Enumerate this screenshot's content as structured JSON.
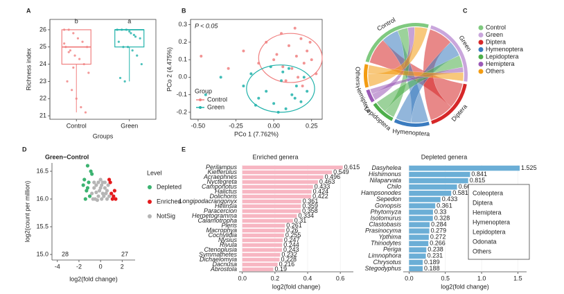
{
  "panel_labels": [
    "A",
    "B",
    "C",
    "D",
    "E"
  ],
  "chart_data": [
    {
      "type": "box",
      "ylabel": "Richness index",
      "xlabel": "Groups",
      "categories": [
        "Control",
        "Green"
      ],
      "colors": [
        "#f08080",
        "#20b2aa"
      ],
      "letters": [
        "b",
        "a"
      ],
      "boxes": [
        {
          "min": 21.2,
          "q1": 24,
          "median": 25,
          "q3": 26,
          "max": 26
        },
        {
          "min": 23,
          "q1": 25,
          "median": 26,
          "q3": 26,
          "max": 26
        }
      ],
      "points": [
        [
          26,
          26,
          25.8,
          25.5,
          25.3,
          25,
          25,
          24.8,
          24.5,
          24.3,
          24,
          23.5,
          23,
          22.5,
          22,
          21.5,
          21.2,
          25.2,
          24.7,
          23.8
        ],
        [
          26,
          26,
          26,
          25.8,
          25.6,
          25.5,
          25.3,
          25,
          25,
          24.8,
          24.5,
          24,
          23.2,
          23,
          25.9,
          25.7
        ]
      ],
      "ylim": [
        20.8,
        26.6
      ],
      "yticks": [
        21,
        22,
        23,
        24,
        25,
        26
      ]
    },
    {
      "type": "scatter",
      "xlabel": "PCo 1 (7.762%)",
      "ylabel": "PCo 2 (4.475%)",
      "annotation": "P < 0.05",
      "legend_title": "Group",
      "series": [
        {
          "name": "Control",
          "color": "#f08080",
          "x": [
            -0.48,
            -0.3,
            -0.2,
            -0.05,
            0.0,
            0.05,
            0.1,
            0.12,
            0.15,
            0.18,
            0.2,
            0.22,
            0.25,
            0.28,
            0.08,
            0.02,
            0.14,
            0.19,
            -0.1,
            0.24,
            0.06,
            0.16
          ],
          "y": [
            0.12,
            0.05,
            0.15,
            0.2,
            0.1,
            0.25,
            0.18,
            0.05,
            0.12,
            0.22,
            0.08,
            0.15,
            0.1,
            0.02,
            -0.02,
            0.13,
            0.28,
            -0.05,
            0.08,
            0.2,
            0.06,
            0.0
          ]
        },
        {
          "name": "Green",
          "color": "#20b2aa",
          "x": [
            -0.45,
            -0.35,
            -0.2,
            -0.15,
            -0.1,
            -0.05,
            0.0,
            0.05,
            0.08,
            0.1,
            0.12,
            0.15,
            0.18,
            0.2,
            -0.02,
            0.03,
            0.22,
            -0.12,
            0.06,
            0.14
          ],
          "y": [
            -0.1,
            0.0,
            -0.05,
            0.02,
            -0.12,
            -0.08,
            -0.15,
            -0.02,
            -0.18,
            0.05,
            -0.1,
            -0.05,
            -0.14,
            0.0,
            0.06,
            -0.2,
            -0.08,
            -0.16,
            0.03,
            -0.12
          ]
        }
      ],
      "ellipses": [
        {
          "cx": 0.11,
          "cy": 0.11,
          "rx": 0.21,
          "ry": 0.14
        },
        {
          "cx": 0.045,
          "cy": -0.065,
          "rx": 0.225,
          "ry": 0.135
        }
      ],
      "xlim": [
        -0.55,
        0.32
      ],
      "ylim": [
        -0.24,
        0.33
      ],
      "xticks": [
        {
          "value": -0.5,
          "label": "-0.50"
        },
        {
          "value": -0.25,
          "label": "-0.25"
        },
        {
          "value": 0,
          "label": "0.00"
        },
        {
          "value": 0.25,
          "label": "0.25"
        }
      ],
      "yticks": [
        {
          "value": -0.2,
          "label": "-0.2"
        },
        {
          "value": -0.1,
          "label": "-0.1"
        },
        {
          "value": 0,
          "label": "0.0"
        },
        {
          "value": 0.1,
          "label": "0.1"
        },
        {
          "value": 0.2,
          "label": "0.2"
        },
        {
          "value": 0.3,
          "label": "0.3"
        }
      ]
    },
    {
      "type": "chord",
      "nodes": [
        "Control",
        "Green",
        "Diptera",
        "Hymenoptera",
        "Lepidoptera",
        "Hemiptera",
        "Others"
      ],
      "colors": [
        "#7fc97f",
        "#c9a6dc",
        "#d62728",
        "#3a7bbf",
        "#4daf4a",
        "#9b59b6",
        "#f39c12"
      ],
      "matrix": [
        [
          30,
          20,
          12,
          8,
          15
        ],
        [
          28,
          18,
          14,
          6,
          10
        ]
      ]
    },
    {
      "type": "volcano",
      "title": "Green−Control",
      "xlabel": "log2(fold change)",
      "ylabel": "log2(count per million)",
      "legend_title": "Level",
      "series": [
        {
          "name": "Depleted",
          "color": "#3cb371",
          "n": 28,
          "x": [
            -1.2,
            -0.9,
            -1.5,
            -1.1,
            -1.3,
            -1.0,
            -1.6,
            -0.8,
            -1.4,
            -1.2
          ],
          "y": [
            16.6,
            16.5,
            16.35,
            16.3,
            16.15,
            16.05,
            16.25,
            16.45,
            16.0,
            16.2
          ]
        },
        {
          "name": "Enriched",
          "color": "#e41a1c",
          "n": 27,
          "x": [
            1.0,
            1.2,
            0.9,
            1.1,
            1.3,
            0.8,
            1.4
          ],
          "y": [
            16.1,
            16.05,
            16.3,
            16.0,
            16.15,
            16.35,
            16.0
          ]
        },
        {
          "name": "NotSig",
          "color": "#b5b5b5",
          "x": [
            -0.8,
            -0.6,
            -0.4,
            -0.2,
            0.0,
            0.2,
            0.4,
            0.6,
            0.8,
            -0.5,
            -0.3,
            0.1,
            0.3,
            0.5,
            -0.7,
            0.7,
            -0.1,
            0.0,
            0.2,
            -0.4,
            0.4,
            -0.6,
            0.6,
            -0.2,
            0.1
          ],
          "y": [
            16.1,
            16.2,
            16.25,
            16.3,
            16.35,
            16.3,
            16.2,
            16.15,
            16.05,
            16.0,
            15.98,
            16.0,
            16.05,
            16.1,
            16.0,
            16.25,
            16.15,
            16.2,
            16.1,
            16.12,
            16.3,
            16.3,
            16.0,
            16.05,
            16.25
          ]
        }
      ],
      "xlim": [
        -4.5,
        3.2
      ],
      "ylim": [
        14.9,
        16.65
      ],
      "xticks": [
        -4,
        -2,
        0,
        2
      ],
      "yticks": [
        {
          "value": 15,
          "label": "15.0"
        },
        15.5,
        {
          "value": 16,
          "label": "16.0"
        },
        16.5
      ]
    },
    {
      "type": "barh",
      "title": "Enriched genera",
      "xlabel": "log2(fold change)",
      "color": "#f7b6c2",
      "categories": [
        "Perilampus",
        "Kiefferulus",
        "Acraephnes",
        "Nyctegreta",
        "Camponotus",
        "Halictus",
        "Dolichoris",
        "Longipodacrangonyx",
        "Helinsia",
        "Paracercion",
        "Herpetogramma",
        "Calamotropha",
        "Pieris",
        "Macrophya",
        "Cochylidia",
        "Nysius",
        "Rivula",
        "Ctenoplusia",
        "Symmathetes",
        "Dichaelomyia",
        "Dacnusa",
        "Abrostola"
      ],
      "values": [
        0.615,
        0.549,
        0.496,
        0.463,
        0.433,
        0.424,
        0.422,
        0.361,
        0.359,
        0.358,
        0.334,
        0.31,
        0.261,
        0.26,
        0.255,
        0.247,
        0.244,
        0.243,
        0.232,
        0.228,
        0.216,
        0.19
      ],
      "label_colors": [
        "#d6246e",
        "#e8601c",
        "#4daf4a",
        "#4daf4a",
        "#d6246e",
        "#d6246e",
        "#6a5acd",
        "#333333",
        "#4daf4a",
        "#e6b400",
        "#4daf4a",
        "#4daf4a",
        "#4daf4a",
        "#d6246e",
        "#4daf4a",
        "#6a5acd",
        "#4daf4a",
        "#4daf4a",
        "#4daf4a",
        "#e8601c",
        "#d6246e",
        "#4daf4a"
      ],
      "xlim": [
        -0.02,
        0.68
      ],
      "xticks": [
        {
          "value": 0,
          "label": "0.0"
        },
        0.2,
        0.4,
        0.6
      ]
    },
    {
      "type": "barh",
      "title": "Depleted genera",
      "xlabel": "log2(fold change)",
      "color": "#6baed6",
      "categories": [
        "Dasyhelea",
        "Hishimonus",
        "Nilaparvata",
        "Chilo",
        "Hampsonodes",
        "Sepedon",
        "Gonopsis",
        "Phytomyza",
        "Isotomurus",
        "Clastobasis",
        "Prasinocyma",
        "Ypthima",
        "Thinodytes",
        "Periga",
        "Limnophora",
        "Chrysotus",
        "Stegodyphus"
      ],
      "values": [
        1.525,
        0.841,
        0.815,
        0.661,
        0.581,
        0.433,
        0.361,
        0.33,
        0.328,
        0.284,
        0.279,
        0.272,
        0.266,
        0.238,
        0.231,
        0.189,
        0.188
      ],
      "label_colors": [
        "#e8601c",
        "#6a5acd",
        "#6a5acd",
        "#4daf4a",
        "#4daf4a",
        "#e8601c",
        "#6a5acd",
        "#e8601c",
        "#333333",
        "#e8601c",
        "#4daf4a",
        "#4daf4a",
        "#2a9d8f",
        "#4daf4a",
        "#e8601c",
        "#e8601c",
        "#333333"
      ],
      "xlim": [
        -0.08,
        1.62
      ],
      "xticks": [
        {
          "value": 0,
          "label": "0.0"
        },
        0.5,
        {
          "value": 1,
          "label": "1.0"
        },
        1.5
      ],
      "legend": {
        "names": [
          "Coleoptera",
          "Diptera",
          "Hemiptera",
          "Hymenoptera",
          "Lepidoptera",
          "Odonata",
          "Others"
        ],
        "colors": [
          "#2a9d8f",
          "#e8601c",
          "#6a5acd",
          "#d6246e",
          "#4daf4a",
          "#e6b400",
          "#333333"
        ]
      }
    }
  ]
}
